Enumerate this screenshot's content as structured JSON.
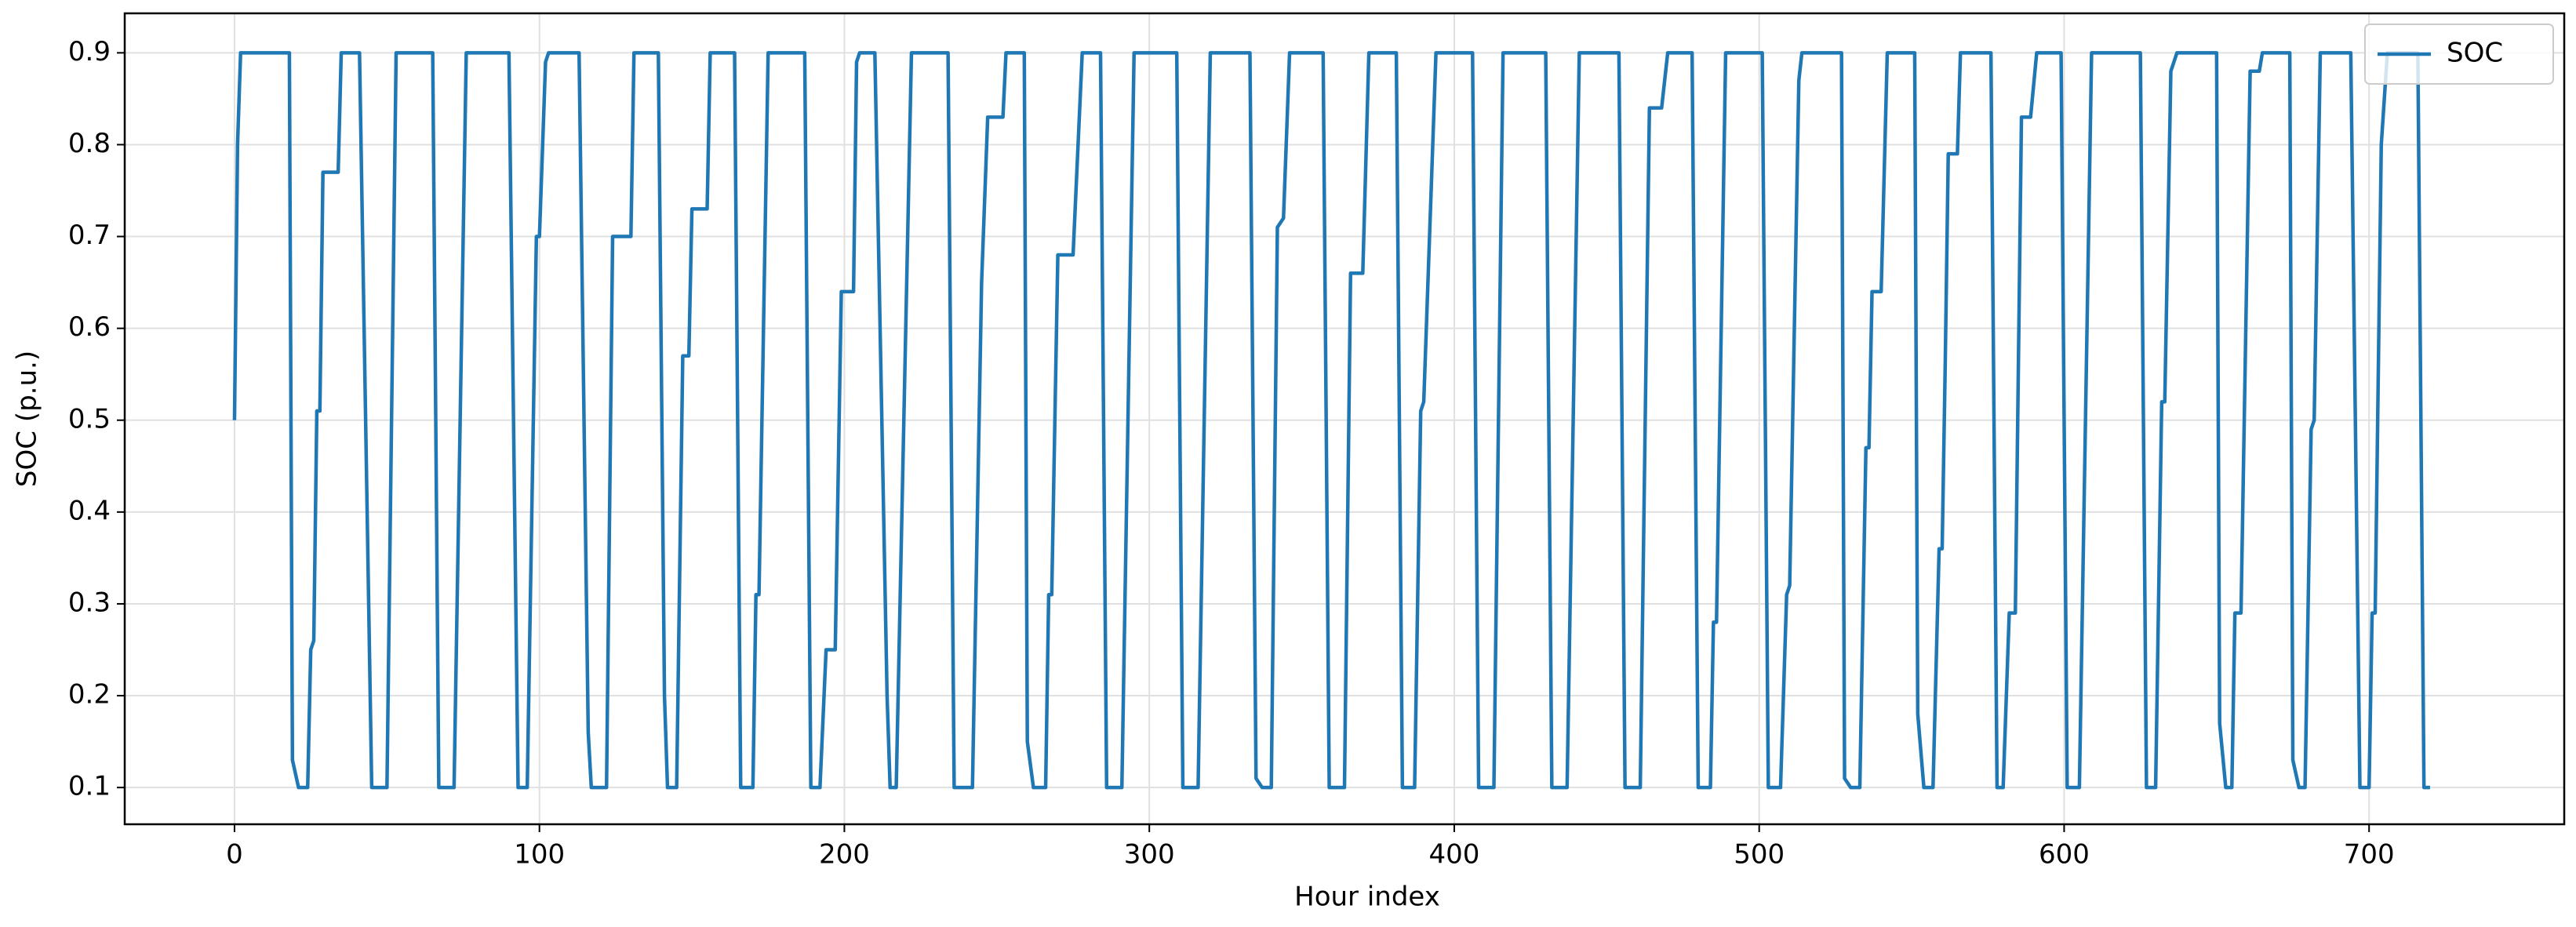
{
  "chart_data": {
    "type": "line",
    "xlabel": "Hour index",
    "ylabel": "SOC (p.u.)",
    "x": [
      0,
      1,
      2,
      18,
      19,
      21,
      24,
      25,
      26,
      27,
      28,
      29,
      34,
      35,
      41,
      45,
      50,
      53,
      65,
      67,
      72,
      76,
      90,
      93,
      96,
      99,
      100,
      102,
      103,
      113,
      116,
      117,
      122,
      124,
      130,
      131,
      139,
      141,
      142,
      145,
      147,
      149,
      150,
      155,
      156,
      164,
      166,
      170,
      171,
      172,
      175,
      187,
      189,
      192,
      194,
      197,
      199,
      203,
      204,
      205,
      210,
      214,
      215,
      217,
      222,
      234,
      236,
      242,
      245,
      247,
      252,
      253,
      259,
      260,
      262,
      266,
      267,
      268,
      270,
      275,
      278,
      284,
      286,
      291,
      295,
      309,
      311,
      316,
      320,
      333,
      335,
      337,
      340,
      342,
      344,
      346,
      357,
      359,
      364,
      366,
      370,
      372,
      381,
      383,
      387,
      389,
      390,
      394,
      406,
      408,
      413,
      416,
      430,
      432,
      437,
      441,
      454,
      456,
      461,
      464,
      468,
      470,
      478,
      480,
      484,
      485,
      486,
      489,
      501,
      503,
      507,
      509,
      510,
      513,
      514,
      527,
      528,
      530,
      533,
      535,
      536,
      537,
      540,
      542,
      551,
      552,
      554,
      557,
      559,
      560,
      561,
      562,
      565,
      566,
      576,
      578,
      580,
      582,
      584,
      586,
      589,
      591,
      599,
      601,
      605,
      609,
      625,
      627,
      630,
      632,
      633,
      635,
      637,
      650,
      651,
      653,
      655,
      656,
      658,
      661,
      664,
      665,
      674,
      675,
      677,
      679,
      681,
      682,
      684,
      694,
      697,
      700,
      701,
      702,
      704,
      706,
      716,
      718,
      720
    ],
    "series": [
      {
        "name": "SOC",
        "color": "#1f77b4",
        "values": [
          0.5,
          0.8,
          0.9,
          0.9,
          0.13,
          0.1,
          0.1,
          0.25,
          0.26,
          0.51,
          0.51,
          0.77,
          0.77,
          0.9,
          0.9,
          0.1,
          0.1,
          0.9,
          0.9,
          0.1,
          0.1,
          0.9,
          0.9,
          0.1,
          0.1,
          0.7,
          0.7,
          0.89,
          0.9,
          0.9,
          0.16,
          0.1,
          0.1,
          0.7,
          0.7,
          0.9,
          0.9,
          0.2,
          0.1,
          0.1,
          0.57,
          0.57,
          0.73,
          0.73,
          0.9,
          0.9,
          0.1,
          0.1,
          0.31,
          0.31,
          0.9,
          0.9,
          0.1,
          0.1,
          0.25,
          0.25,
          0.64,
          0.64,
          0.89,
          0.9,
          0.9,
          0.2,
          0.1,
          0.1,
          0.9,
          0.9,
          0.1,
          0.1,
          0.65,
          0.83,
          0.83,
          0.9,
          0.9,
          0.15,
          0.1,
          0.1,
          0.31,
          0.31,
          0.68,
          0.68,
          0.9,
          0.9,
          0.1,
          0.1,
          0.9,
          0.9,
          0.1,
          0.1,
          0.9,
          0.9,
          0.11,
          0.1,
          0.1,
          0.71,
          0.72,
          0.9,
          0.9,
          0.1,
          0.1,
          0.66,
          0.66,
          0.9,
          0.9,
          0.1,
          0.1,
          0.51,
          0.52,
          0.9,
          0.9,
          0.1,
          0.1,
          0.9,
          0.9,
          0.1,
          0.1,
          0.9,
          0.9,
          0.1,
          0.1,
          0.84,
          0.84,
          0.9,
          0.9,
          0.1,
          0.1,
          0.28,
          0.28,
          0.9,
          0.9,
          0.1,
          0.1,
          0.31,
          0.32,
          0.87,
          0.9,
          0.9,
          0.11,
          0.1,
          0.1,
          0.47,
          0.47,
          0.64,
          0.64,
          0.9,
          0.9,
          0.18,
          0.1,
          0.1,
          0.36,
          0.36,
          0.56,
          0.79,
          0.79,
          0.9,
          0.9,
          0.1,
          0.1,
          0.29,
          0.29,
          0.83,
          0.83,
          0.9,
          0.9,
          0.1,
          0.1,
          0.9,
          0.9,
          0.1,
          0.1,
          0.52,
          0.52,
          0.88,
          0.9,
          0.9,
          0.17,
          0.1,
          0.1,
          0.29,
          0.29,
          0.88,
          0.88,
          0.9,
          0.9,
          0.13,
          0.1,
          0.1,
          0.49,
          0.5,
          0.9,
          0.9,
          0.1,
          0.1,
          0.29,
          0.29,
          0.8,
          0.9,
          0.9,
          0.1,
          0.1
        ]
      }
    ],
    "xlim": [
      -36,
      764
    ],
    "ylim": [
      0.06,
      0.943
    ],
    "xticks": [
      0,
      100,
      200,
      300,
      400,
      500,
      600,
      700
    ],
    "yticks": [
      0.1,
      0.2,
      0.3,
      0.4,
      0.5,
      0.6,
      0.7,
      0.8,
      0.9
    ],
    "grid": true,
    "legend": "upper right"
  }
}
